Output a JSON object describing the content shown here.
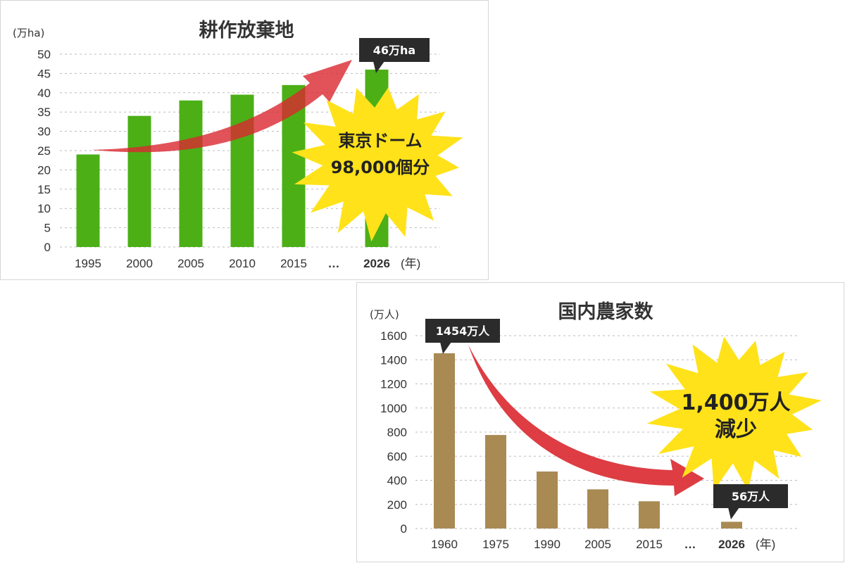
{
  "chart_data": [
    {
      "type": "bar",
      "title": "耕作放棄地",
      "ylabel": "(万ha)",
      "xlabel_unit": "(年)",
      "categories": [
        "1995",
        "2000",
        "2005",
        "2010",
        "2015",
        "2026"
      ],
      "ellipsis": "…",
      "values": [
        24,
        34,
        38,
        39.5,
        42,
        46
      ],
      "ylim": [
        0,
        50
      ],
      "yticks": [
        0,
        5,
        10,
        15,
        20,
        25,
        30,
        35,
        40,
        45,
        50
      ],
      "grid": true,
      "bar_color": "#4caf16",
      "callout": "46万ha",
      "burst_lines": [
        "東京ドーム",
        "98,000個分"
      ],
      "trend": "increase"
    },
    {
      "type": "bar",
      "title": "国内農家数",
      "ylabel": "(万人)",
      "xlabel_unit": "(年)",
      "categories": [
        "1960",
        "1975",
        "1990",
        "2005",
        "2015",
        "2026"
      ],
      "ellipsis": "…",
      "values": [
        1454,
        776,
        473,
        325,
        226,
        56
      ],
      "ylim": [
        0,
        1600
      ],
      "yticks": [
        0,
        200,
        400,
        600,
        800,
        1000,
        1200,
        1400,
        1600
      ],
      "grid": true,
      "bar_color": "#a98a53",
      "callouts": [
        "1454万人",
        "56万人"
      ],
      "burst_lines": [
        "1,400万人",
        "減少"
      ],
      "trend": "decrease"
    }
  ]
}
